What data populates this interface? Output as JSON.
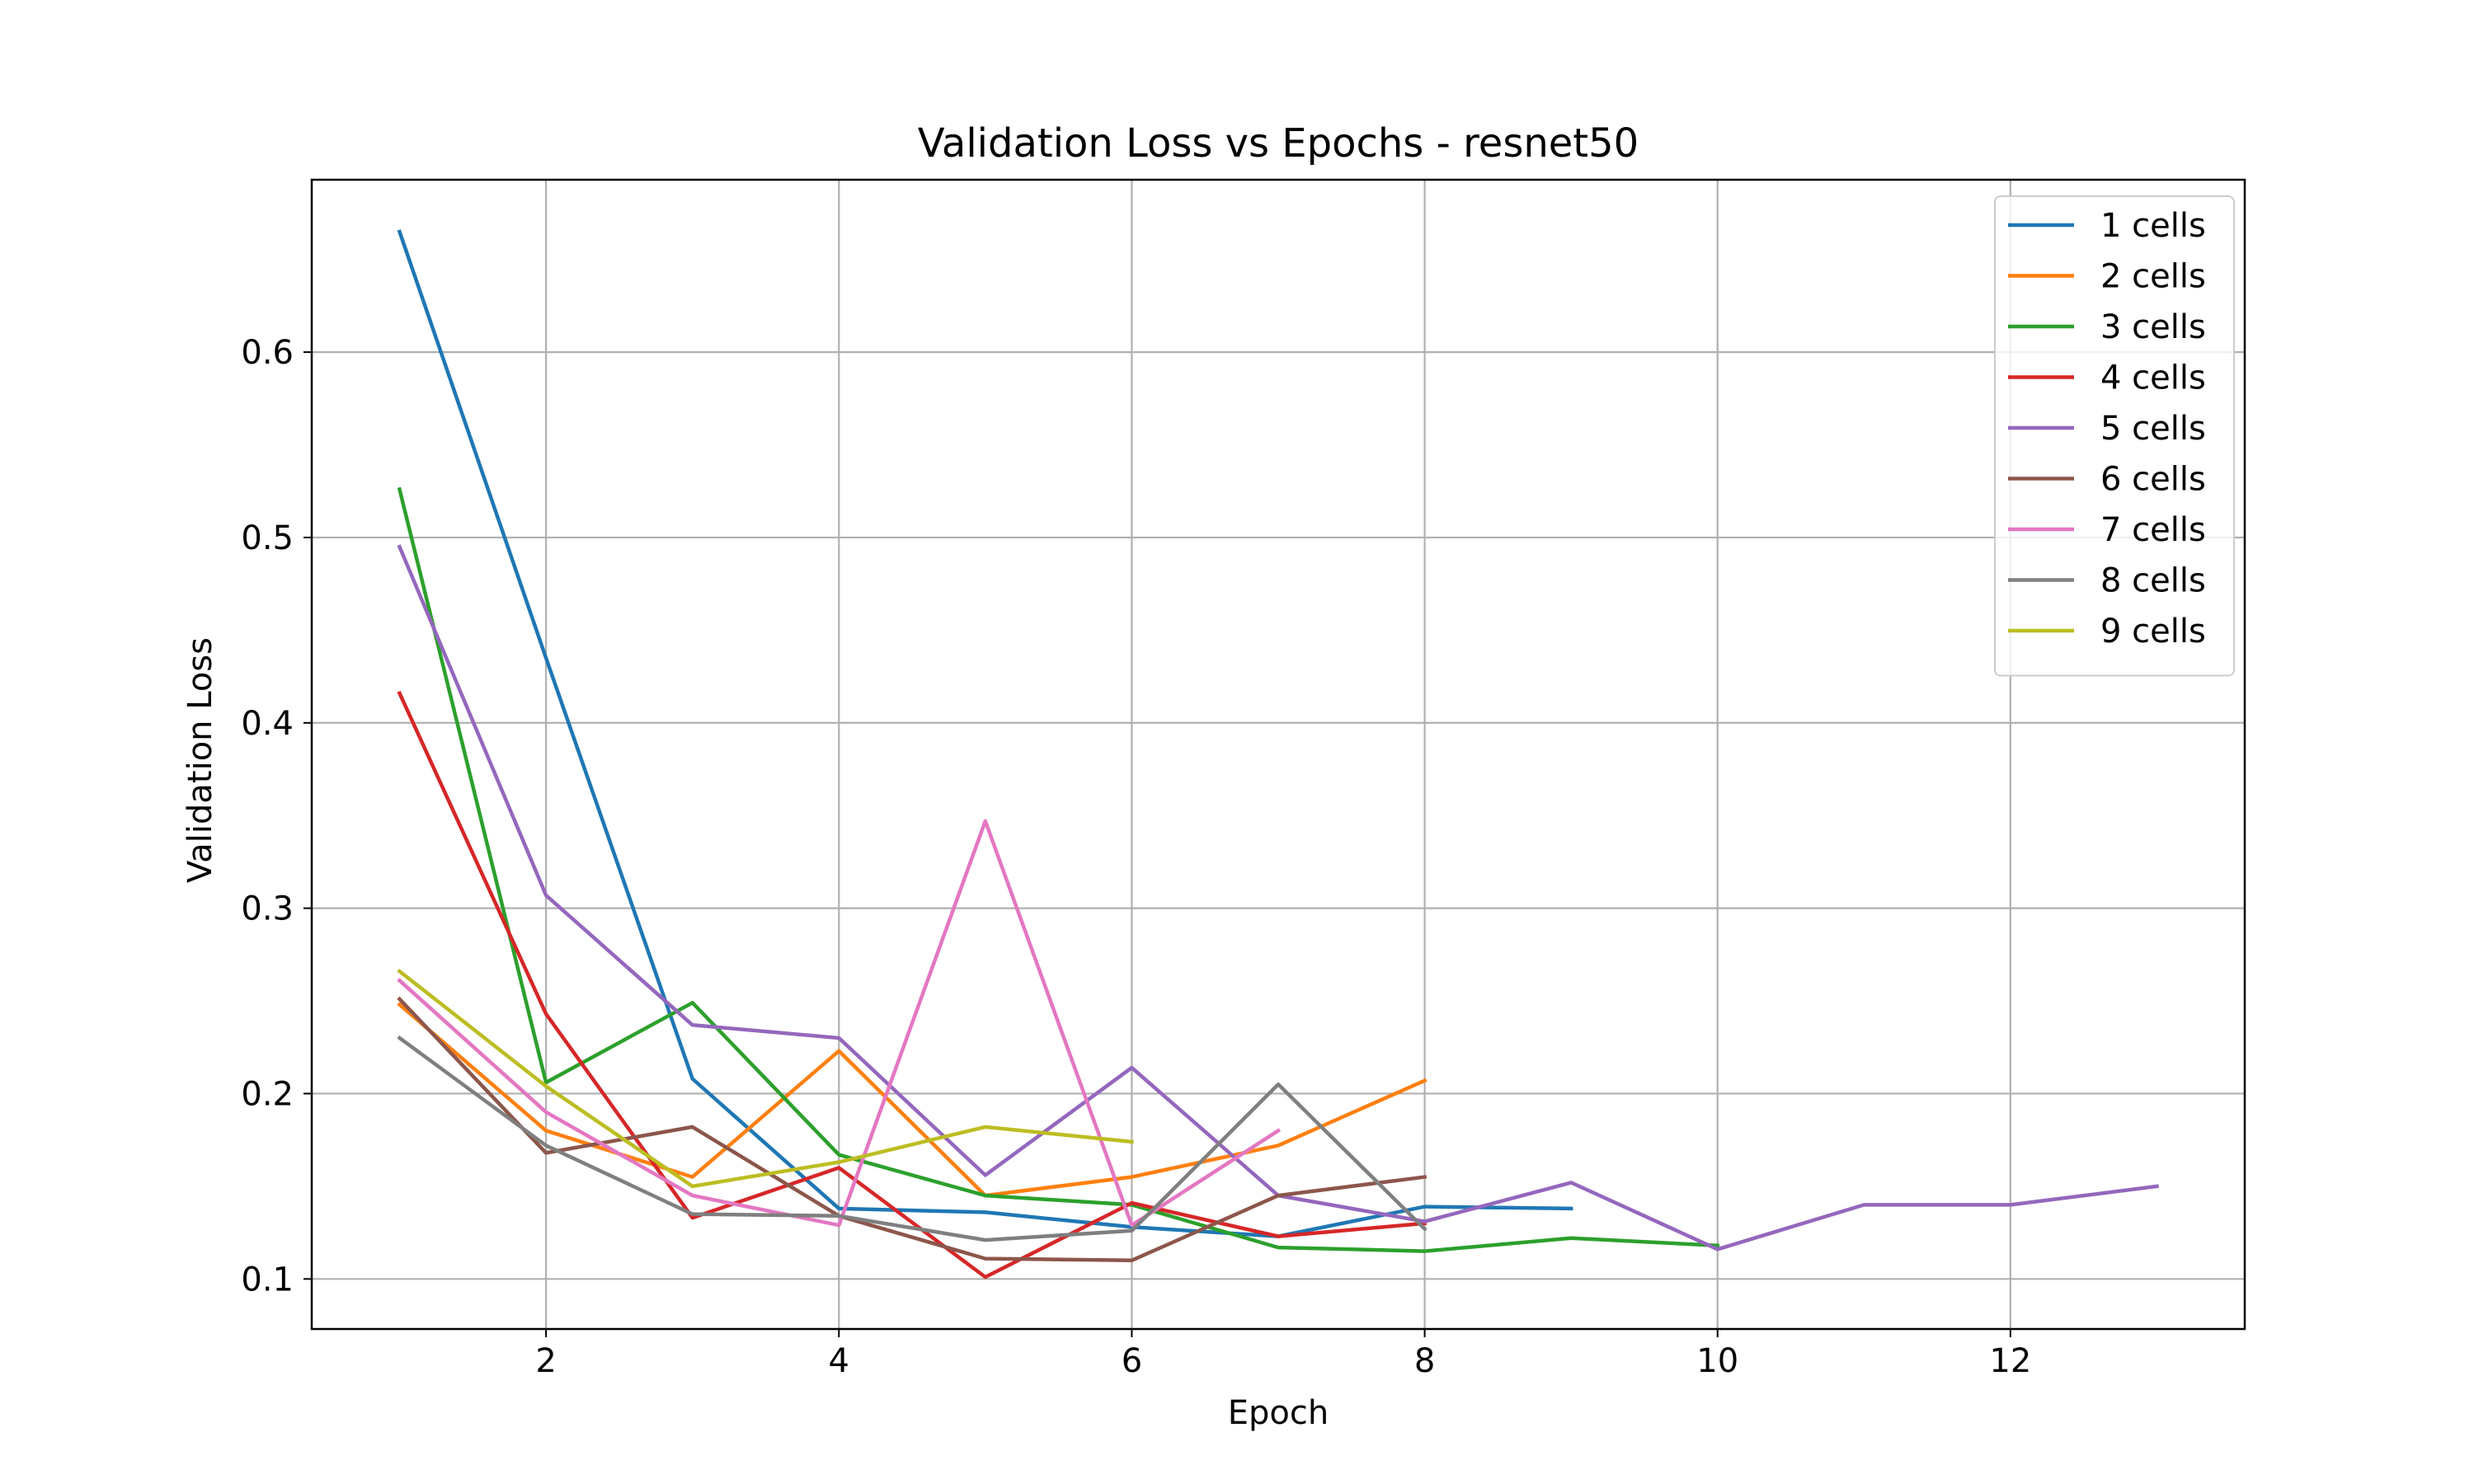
{
  "chart_data": {
    "type": "line",
    "title": "Validation Loss vs Epochs - resnet50",
    "xlabel": "Epoch",
    "ylabel": "Validation Loss",
    "xlim": [
      0.4,
      13.6
    ],
    "ylim": [
      0.073,
      0.693
    ],
    "xticks": [
      2,
      4,
      6,
      8,
      10,
      12
    ],
    "yticks": [
      0.1,
      0.2,
      0.3,
      0.4,
      0.5,
      0.6
    ],
    "xtick_labels": [
      "2",
      "4",
      "6",
      "8",
      "10",
      "12"
    ],
    "ytick_labels": [
      "0.1",
      "0.2",
      "0.3",
      "0.4",
      "0.5",
      "0.6"
    ],
    "grid": true,
    "legend_position": "top-right",
    "series": [
      {
        "name": "1 cells",
        "color": "#1f77b4",
        "x": [
          1,
          2,
          3,
          4,
          5,
          6,
          7,
          8,
          9
        ],
        "y": [
          0.665,
          0.435,
          0.208,
          0.138,
          0.136,
          0.128,
          0.123,
          0.139,
          0.138
        ]
      },
      {
        "name": "2 cells",
        "color": "#ff7f0e",
        "x": [
          1,
          2,
          3,
          4,
          5,
          6,
          7,
          8
        ],
        "y": [
          0.248,
          0.18,
          0.155,
          0.223,
          0.145,
          0.155,
          0.172,
          0.207
        ]
      },
      {
        "name": "3 cells",
        "color": "#2ca02c",
        "x": [
          1,
          2,
          3,
          4,
          5,
          6,
          7,
          8,
          9,
          10
        ],
        "y": [
          0.526,
          0.206,
          0.249,
          0.167,
          0.145,
          0.14,
          0.117,
          0.115,
          0.122,
          0.118
        ]
      },
      {
        "name": "4 cells",
        "color": "#d62728",
        "x": [
          1,
          2,
          3,
          4,
          5,
          6,
          7,
          8
        ],
        "y": [
          0.416,
          0.243,
          0.133,
          0.16,
          0.101,
          0.141,
          0.123,
          0.13
        ]
      },
      {
        "name": "5 cells",
        "color": "#9467bd",
        "x": [
          1,
          2,
          3,
          4,
          5,
          6,
          7,
          8,
          9,
          10,
          11,
          12,
          13
        ],
        "y": [
          0.495,
          0.307,
          0.237,
          0.23,
          0.156,
          0.214,
          0.145,
          0.131,
          0.152,
          0.116,
          0.14,
          0.14,
          0.15
        ]
      },
      {
        "name": "6 cells",
        "color": "#8c564b",
        "x": [
          1,
          2,
          3,
          4,
          5,
          6,
          7,
          8
        ],
        "y": [
          0.251,
          0.168,
          0.182,
          0.134,
          0.111,
          0.11,
          0.145,
          0.155
        ]
      },
      {
        "name": "7 cells",
        "color": "#e377c2",
        "x": [
          1,
          2,
          3,
          4,
          5,
          6,
          7
        ],
        "y": [
          0.261,
          0.19,
          0.145,
          0.129,
          0.347,
          0.129,
          0.18
        ]
      },
      {
        "name": "8 cells",
        "color": "#7f7f7f",
        "x": [
          1,
          2,
          3,
          4,
          5,
          6,
          7,
          8
        ],
        "y": [
          0.23,
          0.172,
          0.135,
          0.134,
          0.121,
          0.126,
          0.205,
          0.127
        ]
      },
      {
        "name": "9 cells",
        "color": "#bcbd22",
        "x": [
          1,
          2,
          3,
          4,
          5,
          6
        ],
        "y": [
          0.266,
          0.204,
          0.15,
          0.163,
          0.182,
          0.174
        ]
      }
    ]
  }
}
